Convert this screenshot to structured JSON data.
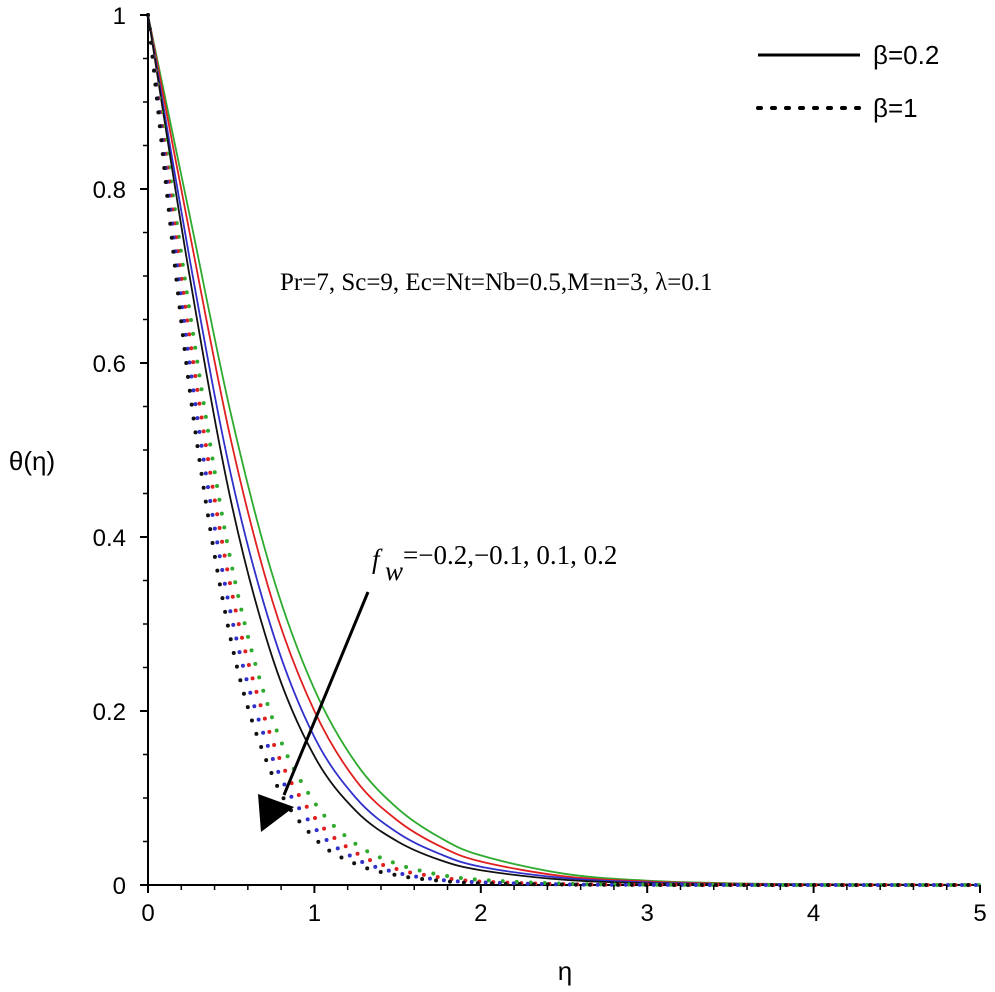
{
  "chart_data": {
    "type": "line",
    "xlabel": "η",
    "ylabel": "θ(η)",
    "xlim": [
      0,
      5
    ],
    "ylim": [
      0,
      1
    ],
    "xticks": [
      "0",
      "1",
      "2",
      "3",
      "4",
      "5"
    ],
    "yticks": [
      "0",
      "0.2",
      "0.4",
      "0.6",
      "0.8",
      "1"
    ],
    "grid": false,
    "legend_position": "top-right",
    "legend": [
      {
        "label": "β=0.2",
        "style": "solid"
      },
      {
        "label": "β=1",
        "style": "dotted"
      }
    ],
    "parameters_text": "Pr=7, Sc=9, Ec=Nt=Nb=0.5,M=n=3, λ=0.1",
    "arrow_annotation": {
      "prefix": "f",
      "subscript": "w",
      "values_text": "=−0.2,−0.1, 0.1, 0.2"
    },
    "x": [
      0,
      0.25,
      0.5,
      0.75,
      1.0,
      1.25,
      1.5,
      1.75,
      2.0,
      2.5,
      3.0,
      3.5,
      4.0,
      4.5,
      5.0
    ],
    "series": [
      {
        "beta": "β=0.2",
        "fw": "-0.2",
        "color": "#2eaa2e",
        "style": "solid",
        "values": [
          1.0,
          0.77,
          0.54,
          0.355,
          0.225,
          0.14,
          0.088,
          0.055,
          0.034,
          0.013,
          0.005,
          0.002,
          0.001,
          0.0005,
          0.0002
        ]
      },
      {
        "beta": "β=0.2",
        "fw": "-0.1",
        "color": "#e02020",
        "style": "solid",
        "values": [
          1.0,
          0.75,
          0.51,
          0.325,
          0.2,
          0.12,
          0.074,
          0.045,
          0.027,
          0.01,
          0.004,
          0.0015,
          0.0006,
          0.0002,
          0.0001
        ]
      },
      {
        "beta": "β=0.2",
        "fw": "0.1",
        "color": "#3030cc",
        "style": "solid",
        "values": [
          1.0,
          0.72,
          0.47,
          0.29,
          0.17,
          0.1,
          0.06,
          0.036,
          0.021,
          0.008,
          0.003,
          0.001,
          0.0004,
          0.0001,
          0.0
        ]
      },
      {
        "beta": "β=0.2",
        "fw": "0.2",
        "color": "#111111",
        "style": "solid",
        "values": [
          1.0,
          0.7,
          0.44,
          0.26,
          0.148,
          0.085,
          0.05,
          0.029,
          0.017,
          0.006,
          0.002,
          0.0008,
          0.0003,
          0.0001,
          0.0
        ]
      },
      {
        "beta": "β=1",
        "fw": "-0.2",
        "color": "#2eaa2e",
        "style": "dotted",
        "values": [
          1.0,
          0.66,
          0.37,
          0.19,
          0.095,
          0.047,
          0.024,
          0.012,
          0.006,
          0.0015,
          0.0004,
          0.0001,
          0.0,
          0.0,
          0.0
        ]
      },
      {
        "beta": "β=1",
        "fw": "-0.1",
        "color": "#e02020",
        "style": "dotted",
        "values": [
          1.0,
          0.63,
          0.34,
          0.165,
          0.078,
          0.037,
          0.018,
          0.009,
          0.004,
          0.001,
          0.0003,
          0.0001,
          0.0,
          0.0,
          0.0
        ]
      },
      {
        "beta": "β=1",
        "fw": "0.1",
        "color": "#3030cc",
        "style": "dotted",
        "values": [
          1.0,
          0.6,
          0.31,
          0.145,
          0.066,
          0.03,
          0.014,
          0.006,
          0.003,
          0.0007,
          0.0002,
          0.0,
          0.0,
          0.0,
          0.0
        ]
      },
      {
        "beta": "β=1",
        "fw": "0.2",
        "color": "#111111",
        "style": "dotted",
        "values": [
          1.0,
          0.57,
          0.28,
          0.125,
          0.054,
          0.024,
          0.011,
          0.005,
          0.002,
          0.0005,
          0.0001,
          0.0,
          0.0,
          0.0,
          0.0
        ]
      }
    ]
  }
}
